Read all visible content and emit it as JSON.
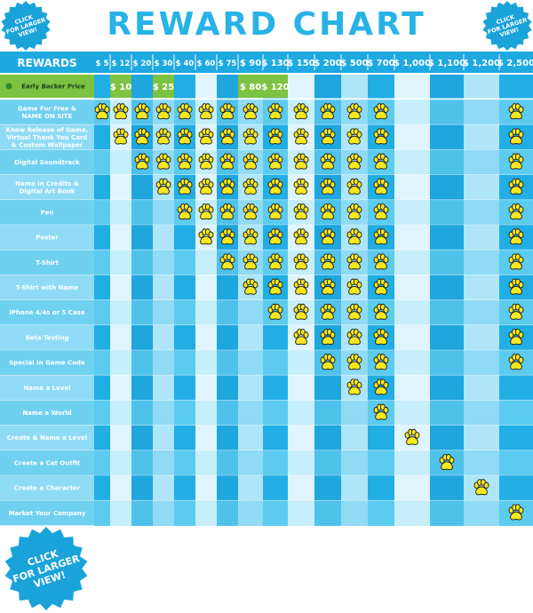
{
  "title": "REWARD CHART",
  "badges": {
    "top_left": [
      "CLICK",
      "FOR LARGER",
      "VIEW!"
    ],
    "top_right": [
      "CLICK",
      "FOR LARGER",
      "VIEW!"
    ],
    "bottom_left": [
      "CLICK",
      "FOR LARGER",
      "VIEW!"
    ]
  },
  "header": {
    "rewards_label": "REWARDS",
    "tiers": [
      "$ 5",
      "$ 12",
      "$ 20",
      "$ 30",
      "$ 40",
      "$ 60",
      "$ 75",
      "$ 90",
      "$ 130",
      "$ 150",
      "$ 200",
      "$ 500",
      "$ 700",
      "$ 1,000",
      "$ 1,100",
      "$ 1,200",
      "$ 2,500"
    ]
  },
  "early_backer": {
    "label": "Early Backer Price",
    "prices": [
      {
        "tier": 1,
        "text": "$ 10"
      },
      {
        "tier": 3,
        "text": "$ 25"
      },
      {
        "tier": 7,
        "text": "$ 80"
      },
      {
        "tier": 8,
        "text": "$ 120"
      }
    ]
  },
  "rewards": [
    {
      "label": [
        "Game For Free &",
        "NAME ON SITE"
      ],
      "tiers": [
        0,
        1,
        2,
        3,
        4,
        5,
        6,
        7,
        8,
        9,
        10,
        11,
        12,
        16
      ]
    },
    {
      "label": [
        "Know Release of Game,",
        "Virtual Thank You Card",
        "& Custom Wallpaper"
      ],
      "tiers": [
        1,
        2,
        3,
        4,
        5,
        6,
        7,
        8,
        9,
        10,
        11,
        12,
        16
      ]
    },
    {
      "label": [
        "Digital Soundtrack"
      ],
      "tiers": [
        2,
        3,
        4,
        5,
        6,
        7,
        8,
        9,
        10,
        11,
        12,
        16
      ]
    },
    {
      "label": [
        "Name in Credits &",
        "Digital Art Book"
      ],
      "tiers": [
        3,
        4,
        5,
        6,
        7,
        8,
        9,
        10,
        11,
        12,
        16
      ]
    },
    {
      "label": [
        "Pen"
      ],
      "tiers": [
        4,
        5,
        6,
        7,
        8,
        9,
        10,
        11,
        12,
        16
      ]
    },
    {
      "label": [
        "Poster"
      ],
      "tiers": [
        5,
        6,
        7,
        8,
        9,
        10,
        11,
        12,
        16
      ]
    },
    {
      "label": [
        "T-Shirt"
      ],
      "tiers": [
        6,
        7,
        8,
        9,
        10,
        11,
        12,
        16
      ]
    },
    {
      "label": [
        "T-Shirt with Name"
      ],
      "tiers": [
        7,
        8,
        9,
        10,
        11,
        12,
        16
      ]
    },
    {
      "label": [
        "iPhone 4/4s or 5 Case"
      ],
      "tiers": [
        8,
        9,
        10,
        11,
        12,
        16
      ]
    },
    {
      "label": [
        "Beta Testing"
      ],
      "tiers": [
        9,
        10,
        11,
        12,
        16
      ]
    },
    {
      "label": [
        "Special In Game Code"
      ],
      "tiers": [
        10,
        11,
        12,
        16
      ]
    },
    {
      "label": [
        "Name a Level"
      ],
      "tiers": [
        11,
        12
      ]
    },
    {
      "label": [
        "Name a World"
      ],
      "tiers": [
        12
      ]
    },
    {
      "label": [
        "Create & Name a Level"
      ],
      "tiers": [
        13
      ]
    },
    {
      "label": [
        "Create a Cat Outfit"
      ],
      "tiers": [
        14
      ]
    },
    {
      "label": [
        "Create a Character"
      ],
      "tiers": [
        15
      ]
    },
    {
      "label": [
        "Market Your Company"
      ],
      "tiers": [
        16
      ]
    }
  ],
  "icon": "paw-icon",
  "colors": {
    "title": "#27b3e6",
    "header_bg": "#1ea9e0",
    "label_bg": "#6fd0f0",
    "label_bg_alt": "#8fdbf5",
    "early_green": "#7dc242",
    "paw": "#f7e81d",
    "paw_outline": "#222222",
    "badge": "#1aa3d9"
  }
}
